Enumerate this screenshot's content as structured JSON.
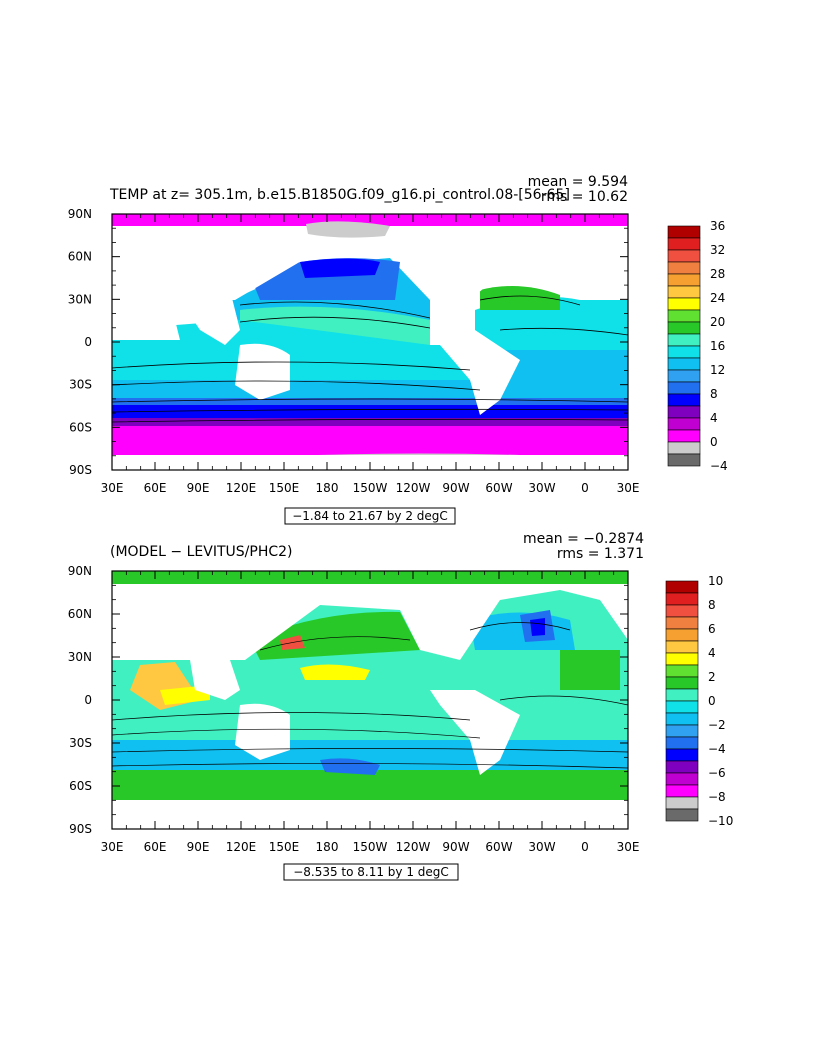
{
  "panels": [
    {
      "title": "TEMP at z= 305.1m, b.e15.B1850G.f09_g16.pi_control.08-[56-65]",
      "mean_label": "mean = 9.594",
      "rms_label": "rms = 10.62",
      "contour_info": "−1.84 to 21.67 by 2 degC",
      "lat_labels": [
        "90N",
        "60N",
        "30N",
        "0",
        "30S",
        "60S",
        "90S"
      ],
      "lon_labels": [
        "30E",
        "60E",
        "90E",
        "120E",
        "150E",
        "180",
        "150W",
        "120W",
        "90W",
        "60W",
        "30W",
        "0",
        "30E"
      ],
      "colorbar": {
        "labels": [
          "36",
          "32",
          "28",
          "24",
          "20",
          "16",
          "12",
          "8",
          "4",
          "0",
          "−4"
        ],
        "colors": [
          "#b00000",
          "#e02020",
          "#f05040",
          "#f08040",
          "#f5a030",
          "#ffc840",
          "#ffff00",
          "#60e030",
          "#28c828",
          "#40f0c0",
          "#10e0e8",
          "#10c0f0",
          "#30a0f0",
          "#2070f0",
          "#0000ff",
          "#8000c0",
          "#c000d0",
          "#ff00ff",
          "#cccccc",
          "#6a6a6a"
        ]
      }
    },
    {
      "title": "(MODEL − LEVITUS/PHC2)",
      "mean_label": "mean = −0.2874",
      "rms_label": "rms = 1.371",
      "contour_info": "−8.535 to 8.11 by 1 degC",
      "lat_labels": [
        "90N",
        "60N",
        "30N",
        "0",
        "30S",
        "60S",
        "90S"
      ],
      "lon_labels": [
        "30E",
        "60E",
        "90E",
        "120E",
        "150E",
        "180",
        "150W",
        "120W",
        "90W",
        "60W",
        "30W",
        "0",
        "30E"
      ],
      "colorbar": {
        "labels": [
          "10",
          "8",
          "6",
          "4",
          "2",
          "0",
          "−2",
          "−4",
          "−6",
          "−8",
          "−10"
        ],
        "colors": [
          "#b00000",
          "#e02020",
          "#f05040",
          "#f08040",
          "#f5a030",
          "#ffc840",
          "#ffff00",
          "#60e030",
          "#28c828",
          "#40f0c0",
          "#10e0e8",
          "#10c0f0",
          "#30a0f0",
          "#2070f0",
          "#0000ff",
          "#8000c0",
          "#c000d0",
          "#ff00ff",
          "#cccccc",
          "#6a6a6a"
        ]
      }
    }
  ]
}
